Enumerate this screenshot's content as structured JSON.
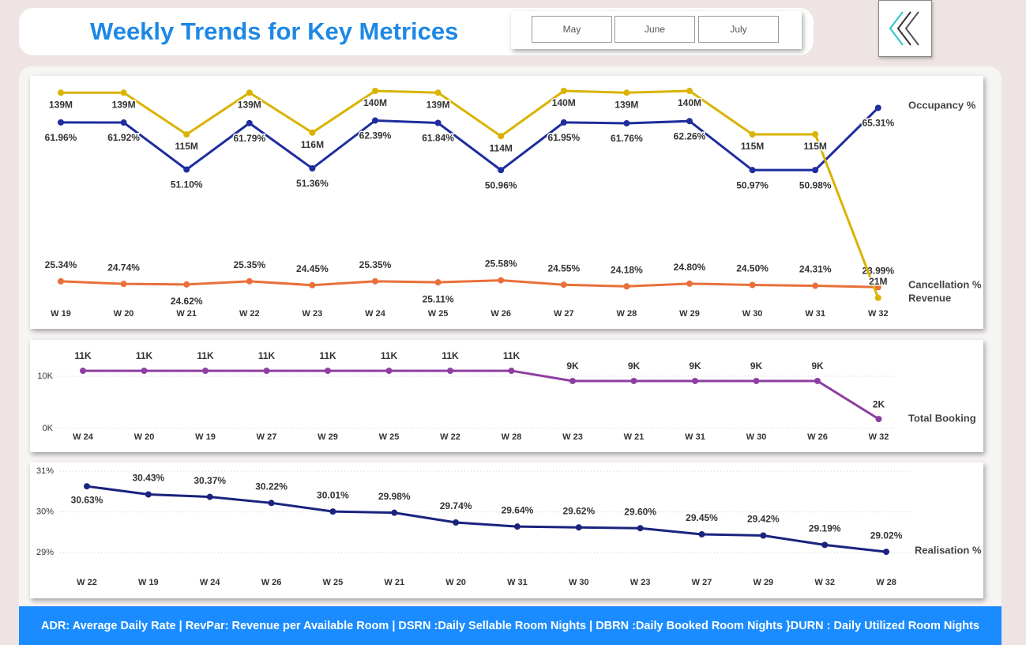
{
  "header": {
    "title": "Weekly Trends for Key Metrices",
    "filters": [
      "May",
      "June",
      "July"
    ]
  },
  "footer": {
    "text": "ADR: Average Daily Rate | RevPar: Revenue per Available Room | DSRN :Daily Sellable Room Nights | DBRN :Daily Booked Room Nights }DURN : Daily Utilized Room Nights"
  },
  "chart_data": [
    {
      "type": "line",
      "categories": [
        "W 19",
        "W 20",
        "W 21",
        "W 22",
        "W 23",
        "W 24",
        "W 25",
        "W 26",
        "W 27",
        "W 28",
        "W 29",
        "W 30",
        "W 31",
        "W 32"
      ],
      "series": [
        {
          "name": "Occupancy %",
          "color": "#1f2d9e",
          "values": [
            61.96,
            61.92,
            51.1,
            61.79,
            51.36,
            62.39,
            61.84,
            50.96,
            61.95,
            61.76,
            62.26,
            50.97,
            50.98,
            65.31
          ],
          "value_labels": [
            "61.96%",
            "61.92%",
            "51.10%",
            "61.79%",
            "51.36%",
            "62.39%",
            "61.84%",
            "50.96%",
            "61.95%",
            "61.76%",
            "62.26%",
            "50.97%",
            "50.98%",
            "65.31%"
          ]
        },
        {
          "name": "Cancellation %",
          "color": "#e8703a",
          "values": [
            25.34,
            24.74,
            24.62,
            25.35,
            24.45,
            25.35,
            25.11,
            25.58,
            24.55,
            24.18,
            24.8,
            24.5,
            24.31,
            23.99
          ],
          "value_labels": [
            "25.34%",
            "24.74%",
            "24.62%",
            "25.35%",
            "24.45%",
            "25.35%",
            "25.11%",
            "25.58%",
            "24.55%",
            "24.18%",
            "24.80%",
            "24.50%",
            "24.31%",
            "23.99%"
          ]
        },
        {
          "name": "Revenue",
          "color": "#d9b300",
          "values": [
            139,
            139,
            115,
            139,
            116,
            140,
            139,
            114,
            140,
            139,
            140,
            115,
            115,
            21
          ],
          "value_labels": [
            "139M",
            "139M",
            "115M",
            "139M",
            "116M",
            "140M",
            "139M",
            "114M",
            "140M",
            "139M",
            "140M",
            "115M",
            "115M",
            "21M"
          ]
        }
      ]
    },
    {
      "type": "line",
      "categories": [
        "W 24",
        "W 20",
        "W 19",
        "W 27",
        "W 29",
        "W 25",
        "W 22",
        "W 28",
        "W 23",
        "W 21",
        "W 31",
        "W 30",
        "W 26",
        "W 32"
      ],
      "ylim": [
        0,
        15000
      ],
      "yticks": [
        {
          "value": 0,
          "label": "0K"
        },
        {
          "value": 10000,
          "label": "10K"
        }
      ],
      "grid": true,
      "series": [
        {
          "name": "Total Booking",
          "color": "#8e3ea0",
          "values": [
            11050,
            11050,
            11050,
            11050,
            11050,
            11050,
            11050,
            11050,
            9100,
            9100,
            9100,
            9100,
            9100,
            1800
          ],
          "value_labels": [
            "11K",
            "11K",
            "11K",
            "11K",
            "11K",
            "11K",
            "11K",
            "11K",
            "9K",
            "9K",
            "9K",
            "9K",
            "9K",
            "2K"
          ]
        }
      ]
    },
    {
      "type": "line",
      "categories": [
        "W 22",
        "W 19",
        "W 24",
        "W 26",
        "W 25",
        "W 21",
        "W 20",
        "W 31",
        "W 30",
        "W 23",
        "W 27",
        "W 29",
        "W 32",
        "W 28"
      ],
      "ylim": [
        28.75,
        31.1
      ],
      "yticks": [
        {
          "value": 29,
          "label": "29%"
        },
        {
          "value": 30,
          "label": "30%"
        },
        {
          "value": 31,
          "label": "31%"
        }
      ],
      "grid": true,
      "series": [
        {
          "name": "Realisation %",
          "color": "#1a237e",
          "values": [
            30.63,
            30.43,
            30.37,
            30.22,
            30.01,
            29.98,
            29.74,
            29.64,
            29.62,
            29.6,
            29.45,
            29.42,
            29.19,
            29.02
          ],
          "value_labels": [
            "30.63%",
            "30.43%",
            "30.37%",
            "30.22%",
            "30.01%",
            "29.98%",
            "29.74%",
            "29.64%",
            "29.62%",
            "29.60%",
            "29.45%",
            "29.42%",
            "29.19%",
            "29.02%"
          ]
        }
      ]
    }
  ]
}
